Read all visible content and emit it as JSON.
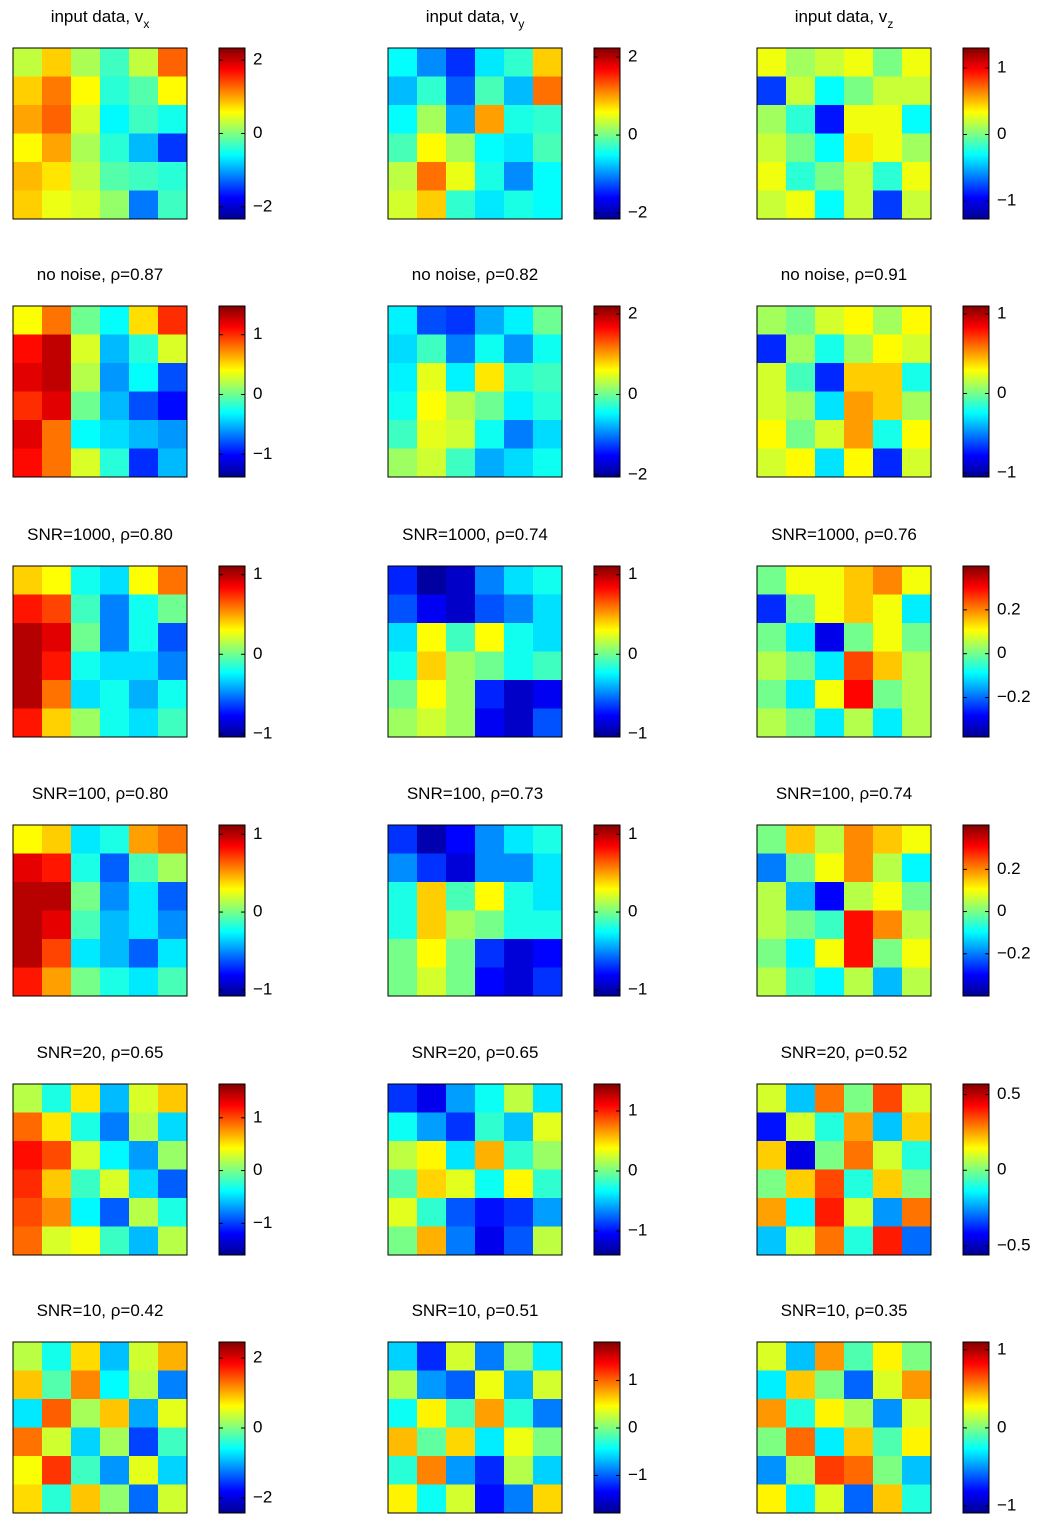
{
  "chart_data": [
    {
      "type": "heatmap",
      "title": "input data, v",
      "title_subscript": "x",
      "colormap": "jet",
      "zlim": [
        -2.33,
        2.33
      ],
      "zticks": [
        {
          "value": -2,
          "label": "−2"
        },
        0,
        2
      ],
      "z": [
        [
          0.3,
          0.8,
          0.2,
          -0.3,
          0.3,
          1.3
        ],
        [
          0.8,
          1.2,
          0.6,
          -0.4,
          -0.2,
          0.6
        ],
        [
          1.0,
          1.3,
          0.4,
          -0.6,
          -0.3,
          -0.5
        ],
        [
          0.6,
          1.0,
          0.2,
          -0.4,
          -0.9,
          -1.5
        ],
        [
          0.9,
          0.7,
          0.3,
          -0.2,
          -0.3,
          -0.4
        ],
        [
          0.8,
          0.5,
          0.4,
          0.1,
          -1.2,
          -0.3
        ]
      ]
    },
    {
      "type": "heatmap",
      "title": "input data, v",
      "title_subscript": "y",
      "colormap": "jet",
      "zlim": [
        -2.15,
        2.23
      ],
      "zticks": [
        {
          "value": -2,
          "label": "−2"
        },
        0,
        2
      ],
      "z": [
        [
          -0.5,
          -1.0,
          -1.4,
          -0.6,
          -0.3,
          0.8
        ],
        [
          -0.8,
          -0.3,
          -1.2,
          -0.2,
          -0.8,
          1.2
        ],
        [
          -0.5,
          0.2,
          -0.9,
          1.0,
          -0.4,
          -0.3
        ],
        [
          -0.2,
          0.6,
          0.2,
          -0.5,
          -0.6,
          -0.2
        ],
        [
          0.3,
          1.2,
          0.5,
          -0.4,
          -1.0,
          -0.5
        ],
        [
          0.4,
          0.8,
          -0.3,
          -0.6,
          -0.4,
          -0.5
        ]
      ]
    },
    {
      "type": "heatmap",
      "title": "input data, v",
      "title_subscript": "z",
      "colormap": "jet",
      "zlim": [
        -1.27,
        1.3
      ],
      "zticks": [
        {
          "value": -1,
          "label": "−1"
        },
        0,
        1
      ],
      "z": [
        [
          0.3,
          0.1,
          0.2,
          0.3,
          0.0,
          0.3
        ],
        [
          -0.8,
          0.2,
          -0.3,
          0.0,
          0.2,
          0.2
        ],
        [
          0.1,
          -0.2,
          -0.9,
          0.3,
          0.3,
          -0.3
        ],
        [
          0.2,
          0.0,
          -0.3,
          0.4,
          0.3,
          0.1
        ],
        [
          0.3,
          -0.2,
          0.0,
          0.2,
          -0.2,
          0.3
        ],
        [
          0.2,
          0.3,
          -0.3,
          0.2,
          -0.8,
          0.2
        ]
      ]
    },
    {
      "type": "heatmap",
      "title": "no noise, ρ=0.87",
      "colormap": "jet",
      "zlim": [
        -1.38,
        1.48
      ],
      "zticks": [
        {
          "value": -1,
          "label": "−1"
        },
        0,
        1
      ],
      "z": [
        [
          0.4,
          0.8,
          0.0,
          -0.3,
          0.5,
          1.0
        ],
        [
          1.1,
          1.3,
          0.3,
          -0.5,
          -0.2,
          0.3
        ],
        [
          1.2,
          1.3,
          0.2,
          -0.6,
          -0.3,
          -0.8
        ],
        [
          1.0,
          1.2,
          0.0,
          -0.5,
          -0.8,
          -1.0
        ],
        [
          1.2,
          0.8,
          -0.3,
          -0.4,
          -0.5,
          -0.6
        ],
        [
          1.1,
          0.8,
          0.3,
          -0.2,
          -0.9,
          -0.5
        ]
      ]
    },
    {
      "type": "heatmap",
      "title": "no noise, ρ=0.82",
      "colormap": "jet",
      "zlim": [
        -2.05,
        2.2
      ],
      "zticks": [
        {
          "value": -2,
          "label": "−2"
        },
        0,
        2
      ],
      "z": [
        [
          -0.5,
          -1.2,
          -1.3,
          -0.8,
          -0.5,
          0.0
        ],
        [
          -0.6,
          -0.2,
          -1.0,
          -0.4,
          -0.9,
          -0.4
        ],
        [
          -0.5,
          0.5,
          -0.5,
          0.7,
          -0.3,
          -0.2
        ],
        [
          -0.4,
          0.6,
          0.3,
          0.0,
          -0.5,
          -0.3
        ],
        [
          -0.2,
          0.5,
          0.4,
          -0.4,
          -1.0,
          -0.6
        ],
        [
          0.2,
          0.4,
          -0.2,
          -0.8,
          -0.6,
          -0.4
        ]
      ]
    },
    {
      "type": "heatmap",
      "title": "no noise, ρ=0.91",
      "colormap": "jet",
      "zlim": [
        -1.05,
        1.1
      ],
      "zticks": [
        {
          "value": -1,
          "label": "−1"
        },
        0,
        1
      ],
      "z": [
        [
          0.1,
          0.0,
          0.2,
          0.3,
          0.1,
          0.3
        ],
        [
          -0.7,
          0.1,
          -0.2,
          0.1,
          0.3,
          0.2
        ],
        [
          0.2,
          -0.1,
          -0.7,
          0.4,
          0.4,
          -0.2
        ],
        [
          0.2,
          0.1,
          -0.3,
          0.5,
          0.4,
          0.1
        ],
        [
          0.3,
          0.0,
          0.2,
          0.5,
          -0.2,
          0.3
        ],
        [
          0.2,
          0.3,
          -0.3,
          0.3,
          -0.7,
          0.2
        ]
      ]
    },
    {
      "type": "heatmap",
      "title": "SNR=1000, ρ=0.80",
      "colormap": "jet",
      "zlim": [
        -1.04,
        1.11
      ],
      "zticks": [
        {
          "value": -1,
          "label": "−1"
        },
        0,
        1
      ],
      "z": [
        [
          0.4,
          0.3,
          -0.2,
          -0.3,
          0.3,
          0.6
        ],
        [
          0.8,
          0.7,
          -0.1,
          -0.5,
          -0.2,
          0.0
        ],
        [
          1.0,
          0.9,
          0.0,
          -0.5,
          -0.2,
          -0.6
        ],
        [
          1.0,
          0.8,
          -0.2,
          -0.3,
          -0.3,
          -0.5
        ],
        [
          1.0,
          0.6,
          -0.3,
          -0.2,
          -0.4,
          -0.2
        ],
        [
          0.8,
          0.4,
          0.1,
          -0.2,
          -0.3,
          -0.1
        ]
      ]
    },
    {
      "type": "heatmap",
      "title": "SNR=1000, ρ=0.74",
      "colormap": "jet",
      "zlim": [
        -1.04,
        1.11
      ],
      "zticks": [
        {
          "value": -1,
          "label": "−1"
        },
        0,
        1
      ],
      "z": [
        [
          -0.7,
          -1.0,
          -0.9,
          -0.5,
          -0.3,
          -0.2
        ],
        [
          -0.6,
          -0.8,
          -0.9,
          -0.6,
          -0.5,
          -0.3
        ],
        [
          -0.3,
          0.3,
          -0.1,
          0.3,
          -0.2,
          -0.3
        ],
        [
          -0.2,
          0.4,
          0.1,
          0.0,
          -0.2,
          -0.1
        ],
        [
          0.0,
          0.3,
          0.1,
          -0.7,
          -0.9,
          -0.8
        ],
        [
          0.1,
          0.2,
          0.1,
          -0.8,
          -0.9,
          -0.6
        ]
      ]
    },
    {
      "type": "heatmap",
      "title": "SNR=1000, ρ=0.76",
      "colormap": "jet",
      "zlim": [
        -0.38,
        0.4
      ],
      "zticks": [
        {
          "value": -0.2,
          "label": "−0.2"
        },
        0,
        0.2
      ],
      "z": [
        [
          0.0,
          0.1,
          0.1,
          0.15,
          0.2,
          0.1
        ],
        [
          -0.25,
          0.0,
          0.1,
          0.15,
          0.1,
          -0.1
        ],
        [
          0.0,
          -0.1,
          -0.3,
          0.0,
          0.1,
          0.0
        ],
        [
          0.05,
          0.0,
          -0.1,
          0.25,
          0.15,
          0.05
        ],
        [
          0.0,
          -0.1,
          0.1,
          0.3,
          0.0,
          0.05
        ],
        [
          0.05,
          0.0,
          -0.1,
          0.05,
          -0.1,
          0.05
        ]
      ]
    },
    {
      "type": "heatmap",
      "title": "SNR=100, ρ=0.80",
      "colormap": "jet",
      "zlim": [
        -1.08,
        1.12
      ],
      "zticks": [
        {
          "value": -1,
          "label": "−1"
        },
        0,
        1
      ],
      "z": [
        [
          0.3,
          0.4,
          -0.3,
          -0.2,
          0.5,
          0.6
        ],
        [
          0.9,
          0.8,
          -0.2,
          -0.6,
          -0.1,
          0.1
        ],
        [
          1.0,
          1.0,
          0.0,
          -0.5,
          -0.3,
          -0.6
        ],
        [
          1.0,
          0.9,
          -0.1,
          -0.4,
          -0.3,
          -0.5
        ],
        [
          1.0,
          0.7,
          -0.3,
          -0.4,
          -0.6,
          -0.3
        ],
        [
          0.8,
          0.5,
          0.0,
          -0.2,
          -0.3,
          -0.1
        ]
      ]
    },
    {
      "type": "heatmap",
      "title": "SNR=100, ρ=0.73",
      "colormap": "jet",
      "zlim": [
        -1.08,
        1.12
      ],
      "zticks": [
        {
          "value": -1,
          "label": "−1"
        },
        0,
        1
      ],
      "z": [
        [
          -0.7,
          -1.0,
          -0.8,
          -0.5,
          -0.3,
          -0.2
        ],
        [
          -0.5,
          -0.7,
          -0.9,
          -0.5,
          -0.5,
          -0.3
        ],
        [
          -0.2,
          0.4,
          -0.1,
          0.3,
          -0.2,
          -0.3
        ],
        [
          -0.2,
          0.4,
          0.1,
          0.0,
          -0.2,
          -0.2
        ],
        [
          0.0,
          0.3,
          0.0,
          -0.7,
          -0.9,
          -0.8
        ],
        [
          0.0,
          0.2,
          0.0,
          -0.8,
          -0.9,
          -0.7
        ]
      ]
    },
    {
      "type": "heatmap",
      "title": "SNR=100, ρ=0.74",
      "colormap": "jet",
      "zlim": [
        -0.4,
        0.41
      ],
      "zticks": [
        {
          "value": -0.2,
          "label": "−0.2"
        },
        0,
        0.2
      ],
      "z": [
        [
          0.0,
          0.15,
          0.05,
          0.2,
          0.15,
          0.1
        ],
        [
          -0.2,
          0.0,
          0.1,
          0.2,
          0.05,
          -0.1
        ],
        [
          0.05,
          -0.15,
          -0.3,
          0.05,
          0.1,
          0.0
        ],
        [
          0.05,
          0.0,
          -0.05,
          0.3,
          0.2,
          0.05
        ],
        [
          0.0,
          -0.1,
          0.1,
          0.3,
          0.0,
          0.1
        ],
        [
          0.05,
          -0.05,
          -0.1,
          0.05,
          -0.15,
          0.05
        ]
      ]
    },
    {
      "type": "heatmap",
      "title": "SNR=20, ρ=0.65",
      "colormap": "jet",
      "zlim": [
        -1.6,
        1.64
      ],
      "zticks": [
        {
          "value": -1,
          "label": "−1"
        },
        0,
        1
      ],
      "z": [
        [
          0.2,
          -0.3,
          0.5,
          -0.6,
          0.3,
          0.6
        ],
        [
          0.9,
          0.5,
          -0.3,
          -0.8,
          0.2,
          -0.5
        ],
        [
          1.2,
          1.0,
          0.3,
          -0.4,
          -0.7,
          0.1
        ],
        [
          1.1,
          0.6,
          -0.2,
          0.3,
          -0.5,
          -0.9
        ],
        [
          1.0,
          0.8,
          -0.4,
          -0.9,
          0.2,
          -0.3
        ],
        [
          0.9,
          0.3,
          0.4,
          -0.2,
          -0.6,
          0.2
        ]
      ]
    },
    {
      "type": "heatmap",
      "title": "SNR=20, ρ=0.65",
      "colormap": "jet",
      "zlim": [
        -1.4,
        1.45
      ],
      "zticks": [
        {
          "value": -1,
          "label": "−1"
        },
        0,
        1
      ],
      "z": [
        [
          -0.9,
          -1.1,
          -0.6,
          -0.3,
          0.2,
          -0.4
        ],
        [
          -0.3,
          -0.6,
          -0.9,
          -0.2,
          -0.5,
          0.3
        ],
        [
          0.2,
          0.4,
          -0.4,
          0.6,
          -0.2,
          0.1
        ],
        [
          -0.1,
          0.5,
          0.3,
          -0.3,
          0.4,
          -0.2
        ],
        [
          0.3,
          -0.2,
          -0.8,
          -1.0,
          -0.9,
          -0.6
        ],
        [
          0.0,
          0.6,
          -0.7,
          -1.1,
          -0.8,
          0.2
        ]
      ]
    },
    {
      "type": "heatmap",
      "title": "SNR=20, ρ=0.52",
      "colormap": "jet",
      "zlim": [
        -0.56,
        0.57
      ],
      "zticks": [
        {
          "value": -0.5,
          "label": "−0.5"
        },
        0,
        0.5
      ],
      "z": [
        [
          0.1,
          -0.2,
          0.3,
          0.0,
          0.35,
          0.1
        ],
        [
          -0.4,
          0.1,
          -0.1,
          0.25,
          -0.2,
          0.2
        ],
        [
          0.2,
          -0.45,
          0.0,
          0.3,
          0.1,
          -0.1
        ],
        [
          0.0,
          0.2,
          0.35,
          -0.1,
          0.2,
          0.0
        ],
        [
          0.25,
          -0.15,
          0.4,
          0.1,
          -0.25,
          0.3
        ],
        [
          -0.2,
          0.1,
          0.3,
          -0.1,
          0.4,
          -0.3
        ]
      ]
    },
    {
      "type": "heatmap",
      "title": "SNR=10, ρ=0.42",
      "colormap": "jet",
      "zlim": [
        -2.43,
        2.46
      ],
      "zticks": [
        {
          "value": -2,
          "label": "−2"
        },
        0,
        2
      ],
      "z": [
        [
          0.3,
          -0.5,
          0.8,
          -0.9,
          0.4,
          1.0
        ],
        [
          0.9,
          -0.2,
          1.2,
          -0.6,
          0.3,
          -1.2
        ],
        [
          -0.7,
          1.4,
          0.2,
          0.9,
          -1.0,
          0.5
        ],
        [
          1.3,
          0.4,
          -0.8,
          0.2,
          -1.5,
          -0.3
        ],
        [
          0.6,
          1.6,
          -0.3,
          -1.1,
          0.5,
          -0.8
        ],
        [
          0.8,
          -0.4,
          0.9,
          0.1,
          -1.3,
          0.4
        ]
      ]
    },
    {
      "type": "heatmap",
      "title": "SNR=10, ρ=0.51",
      "colormap": "jet",
      "zlim": [
        -1.79,
        1.81
      ],
      "zticks": [
        {
          "value": -1,
          "label": "−1"
        },
        0,
        1
      ],
      "z": [
        [
          -0.6,
          -1.2,
          0.3,
          -0.9,
          0.1,
          -0.5
        ],
        [
          0.2,
          -0.8,
          -1.0,
          0.4,
          -0.7,
          0.3
        ],
        [
          -0.4,
          0.5,
          -0.2,
          0.8,
          -0.3,
          -0.9
        ],
        [
          0.7,
          -0.1,
          0.6,
          -0.5,
          0.4,
          0.0
        ],
        [
          -0.3,
          0.9,
          -0.8,
          -1.2,
          0.2,
          -0.6
        ],
        [
          0.5,
          -0.4,
          0.3,
          -1.3,
          -0.9,
          0.6
        ]
      ]
    },
    {
      "type": "heatmap",
      "title": "SNR=10, ρ=0.35",
      "colormap": "jet",
      "zlim": [
        -1.09,
        1.1
      ],
      "zticks": [
        {
          "value": -1,
          "label": "−1"
        },
        0,
        1
      ],
      "z": [
        [
          0.2,
          -0.4,
          0.5,
          -0.1,
          0.3,
          0.0
        ],
        [
          -0.3,
          0.4,
          0.0,
          -0.6,
          0.2,
          0.5
        ],
        [
          0.5,
          -0.2,
          0.3,
          0.1,
          -0.5,
          0.2
        ],
        [
          0.0,
          0.6,
          -0.3,
          0.4,
          -0.1,
          0.3
        ],
        [
          -0.5,
          0.1,
          0.7,
          0.6,
          0.0,
          -0.4
        ],
        [
          0.3,
          -0.3,
          0.2,
          -0.6,
          0.4,
          -0.2
        ]
      ]
    }
  ]
}
